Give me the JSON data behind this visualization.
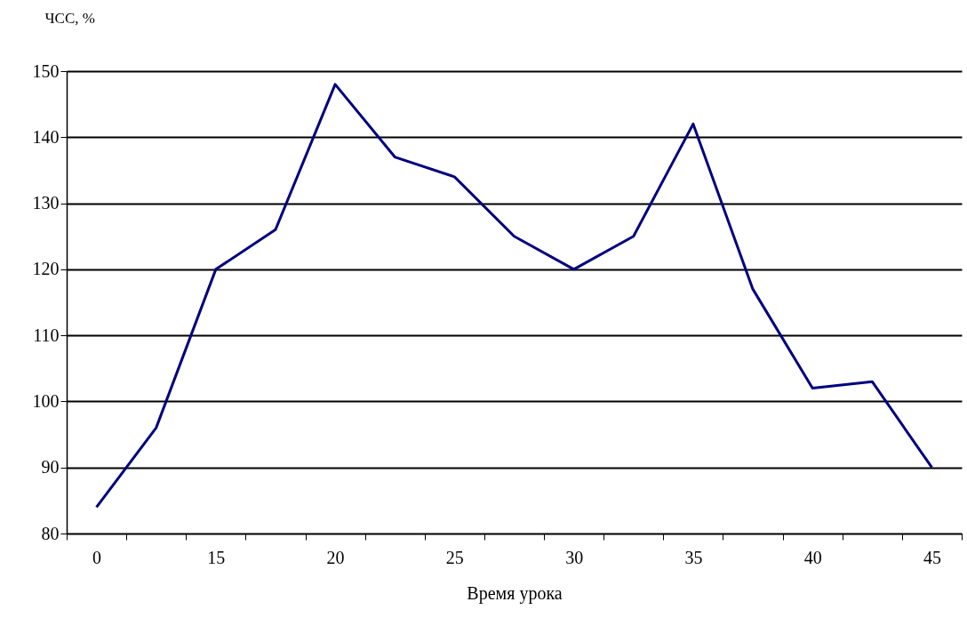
{
  "chart_data": {
    "type": "line",
    "ylabel": "ЧСС, %",
    "xlabel": "Время урока",
    "categories": [
      "0",
      null,
      "15",
      null,
      "20",
      null,
      "25",
      null,
      "30",
      null,
      "35",
      null,
      "40",
      null,
      "45"
    ],
    "series": [
      {
        "color": "#000080",
        "values": [
          84,
          96,
          120,
          126,
          148,
          137,
          134,
          125,
          120,
          125,
          142,
          117,
          102,
          103,
          90
        ]
      }
    ],
    "ylim": [
      80,
      150
    ],
    "yticks": [
      80,
      90,
      100,
      110,
      120,
      130,
      140,
      150
    ],
    "grid": "y",
    "marker": "none",
    "line_style": "solid"
  }
}
